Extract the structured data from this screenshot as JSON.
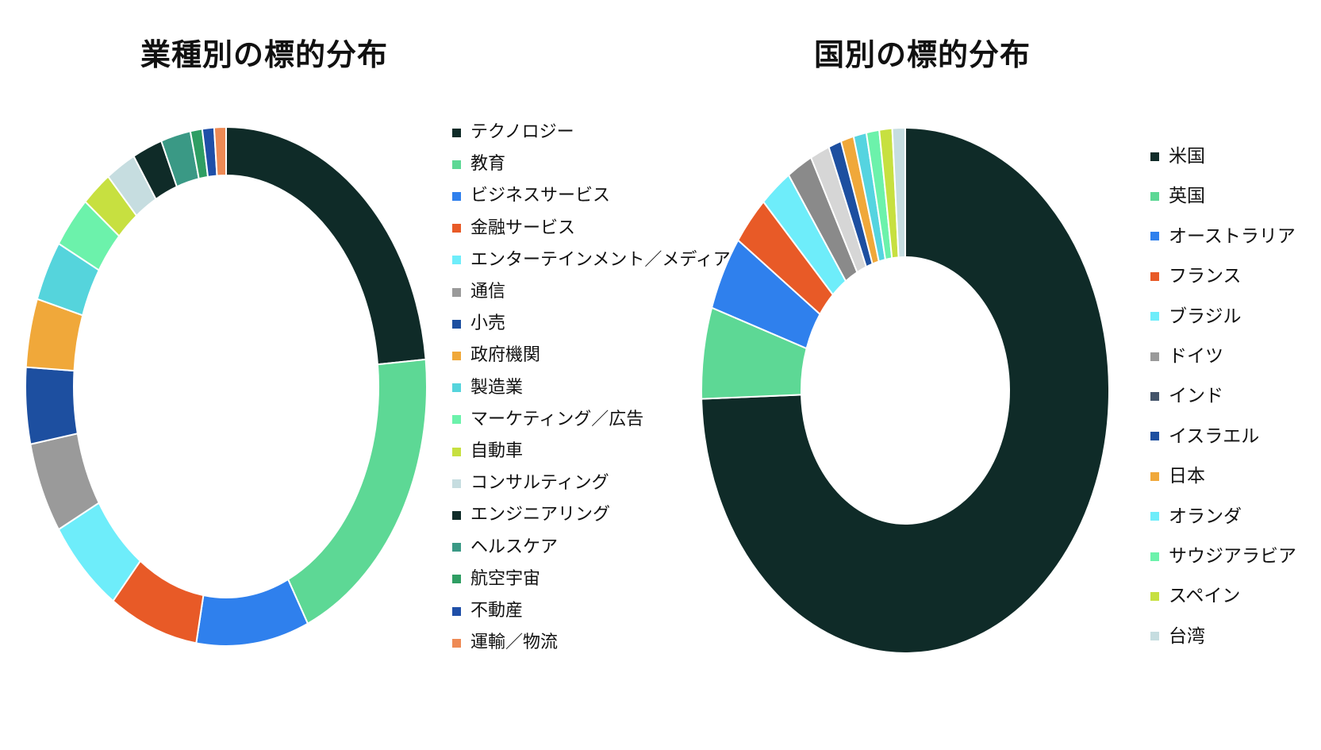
{
  "charts": {
    "industry": {
      "title": "業種別の標的分布"
    },
    "country": {
      "title": "国別の標的分布"
    }
  },
  "chart_data": [
    {
      "type": "pie",
      "title": "業種別の標的分布",
      "donut": true,
      "legend": "right",
      "unit": "percent (estimated)",
      "series": [
        {
          "label": "テクノロジー",
          "value": 24.5,
          "color": "#0f2b28"
        },
        {
          "label": "教育",
          "value": 21.0,
          "color": "#5dd895"
        },
        {
          "label": "ビジネスサービス",
          "value": 9.5,
          "color": "#2f80ed"
        },
        {
          "label": "金融サービス",
          "value": 7.5,
          "color": "#e85a27"
        },
        {
          "label": "エンターテインメント／メディア",
          "value": 6.5,
          "color": "#6eedfa"
        },
        {
          "label": "通信",
          "value": 6.0,
          "color": "#9a9a9a"
        },
        {
          "label": "小売",
          "value": 5.0,
          "color": "#1d4fa0"
        },
        {
          "label": "政府機関",
          "value": 4.5,
          "color": "#f0a83a"
        },
        {
          "label": "製造業",
          "value": 4.0,
          "color": "#55d4dc"
        },
        {
          "label": "マーケティング／広告",
          "value": 3.5,
          "color": "#6cf2ab"
        },
        {
          "label": "自動車",
          "value": 2.5,
          "color": "#c7e040"
        },
        {
          "label": "コンサルティング",
          "value": 2.5,
          "color": "#c6dde0"
        },
        {
          "label": "エンジニアリング",
          "value": 2.5,
          "color": "#0f2b28"
        },
        {
          "label": "ヘルスケア",
          "value": 2.5,
          "color": "#3a9985"
        },
        {
          "label": "航空宇宙",
          "value": 1.0,
          "color": "#2f9e63"
        },
        {
          "label": "不動産",
          "value": 1.0,
          "color": "#1f4fa8"
        },
        {
          "label": "運輸／物流",
          "value": 1.0,
          "color": "#ee8a55"
        }
      ]
    },
    {
      "type": "pie",
      "title": "国別の標的分布",
      "donut": true,
      "legend": "right",
      "unit": "percent (estimated)",
      "series": [
        {
          "label": "米国",
          "value": 73.0,
          "color": "#0f2b28"
        },
        {
          "label": "英国",
          "value": 5.5,
          "color": "#5dd895"
        },
        {
          "label": "オーストラリア",
          "value": 4.5,
          "color": "#2f80ed"
        },
        {
          "label": "フランス",
          "value": 3.0,
          "color": "#e85a27"
        },
        {
          "label": "ブラジル",
          "value": 2.5,
          "color": "#6eedfa"
        },
        {
          "label": "ドイツ",
          "value": 2.0,
          "color": "#8a8a8a"
        },
        {
          "label": "インド",
          "value": 1.5,
          "color": "#d6d6d6"
        },
        {
          "label": "イスラエル",
          "value": 1.0,
          "color": "#1d4fa0"
        },
        {
          "label": "日本",
          "value": 1.0,
          "color": "#f0a83a"
        },
        {
          "label": "オランダ",
          "value": 1.0,
          "color": "#55d4e0"
        },
        {
          "label": "サウジアラビア",
          "value": 1.0,
          "color": "#6cf2ab"
        },
        {
          "label": "スペイン",
          "value": 1.0,
          "color": "#c7e040"
        },
        {
          "label": "台湾",
          "value": 1.0,
          "color": "#c6dde0"
        }
      ],
      "legend_colors": [
        "#0f2b28",
        "#5dd895",
        "#2f80ed",
        "#e85a27",
        "#6eedfa",
        "#9a9a9a",
        "#44546a",
        "#1d4fa0",
        "#f0a83a",
        "#6eedfa",
        "#6cf2ab",
        "#c7e040",
        "#c6dde0"
      ]
    }
  ]
}
